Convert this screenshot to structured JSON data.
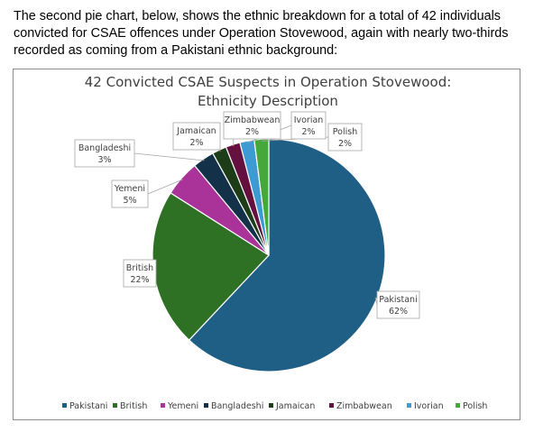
{
  "intro_text": "The second pie chart, below, shows the ethnic breakdown for a total of 42 individuals convicted for CSAE offences under Operation Stovewood, again with nearly two-thirds recorded as coming from a Pakistani ethnic background:",
  "chart_data": {
    "type": "pie",
    "title_lines": [
      "42 Convicted CSAE Suspects in Operation Stovewood:",
      "Ethnicity Description"
    ],
    "categories": [
      "Pakistani",
      "British",
      "Yemeni",
      "Bangladeshi",
      "Jamaican",
      "Zimbabwean",
      "Ivorian",
      "Polish"
    ],
    "values": [
      62,
      22,
      5,
      3,
      2,
      2,
      2,
      2
    ],
    "value_labels": [
      "62%",
      "22%",
      "5%",
      "3%",
      "2%",
      "2%",
      "2%",
      "2%"
    ],
    "colors": [
      "#1f5f86",
      "#2e7125",
      "#a93399",
      "#133149",
      "#1d3d19",
      "#65113f",
      "#3d9ad2",
      "#46a83b"
    ],
    "legend_position": "bottom"
  }
}
